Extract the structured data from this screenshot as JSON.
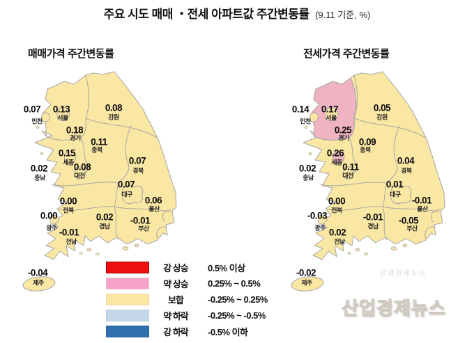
{
  "title": {
    "main": "주요 시도 매매 ・전세 아파트값 주간변동률",
    "suffix": "(9.11 기준, %)"
  },
  "maps": [
    {
      "title": "매매가격 주간변동률",
      "highlighted_regions": [],
      "regions": [
        {
          "name": "인천",
          "value": "0.07"
        },
        {
          "name": "서울",
          "value": "0.13"
        },
        {
          "name": "강원",
          "value": "0.08"
        },
        {
          "name": "경기",
          "value": "0.18"
        },
        {
          "name": "충북",
          "value": "0.11"
        },
        {
          "name": "세종",
          "value": "0.15"
        },
        {
          "name": "대전",
          "value": "0.08"
        },
        {
          "name": "충남",
          "value": "0.02"
        },
        {
          "name": "경북",
          "value": "0.07"
        },
        {
          "name": "대구",
          "value": "0.07"
        },
        {
          "name": "울산",
          "value": "0.06"
        },
        {
          "name": "전북",
          "value": "0.00"
        },
        {
          "name": "광주",
          "value": "0.00"
        },
        {
          "name": "경남",
          "value": "0.02"
        },
        {
          "name": "부산",
          "value": "-0.01"
        },
        {
          "name": "전남",
          "value": "-0.01"
        },
        {
          "name": "제주",
          "value": "-0.04"
        }
      ]
    },
    {
      "title": "전세가격 주간변동률",
      "highlighted_regions": [
        "경기",
        "세종"
      ],
      "regions": [
        {
          "name": "인천",
          "value": "0.14"
        },
        {
          "name": "서울",
          "value": "0.17"
        },
        {
          "name": "강원",
          "value": "0.05"
        },
        {
          "name": "경기",
          "value": "0.25"
        },
        {
          "name": "충북",
          "value": "0.09"
        },
        {
          "name": "세종",
          "value": "0.26"
        },
        {
          "name": "대전",
          "value": "0.11"
        },
        {
          "name": "충남",
          "value": "0.02"
        },
        {
          "name": "경북",
          "value": "0.04"
        },
        {
          "name": "대구",
          "value": "0.01"
        },
        {
          "name": "울산",
          "value": "-0.01"
        },
        {
          "name": "전북",
          "value": "0.00"
        },
        {
          "name": "광주",
          "value": "-0.03"
        },
        {
          "name": "경남",
          "value": "-0.01"
        },
        {
          "name": "부산",
          "value": "-0.05"
        },
        {
          "name": "전남",
          "value": "0.02"
        },
        {
          "name": "제주",
          "value": "-0.02"
        }
      ]
    }
  ],
  "legend": {
    "items": [
      {
        "label": "강 상승",
        "range": "0.5% 이상",
        "color": "#ee0f0f",
        "border": "#990000"
      },
      {
        "label": "약 상승",
        "range": "0.25% ~ 0.5%",
        "color": "#f8a2c8",
        "border": "#e3c3d2"
      },
      {
        "label": "보합",
        "range": "-0.25% ~ 0.25%",
        "color": "#fbe6a2",
        "border": "#e6d9b4"
      },
      {
        "label": "약 하락",
        "range": "-0.25% ~ -0.5%",
        "color": "#c5d8ea",
        "border": "#b9c9da"
      },
      {
        "label": "강 하락",
        "range": "-0.5% 이하",
        "color": "#2f6fad",
        "border": "#2a5f94"
      }
    ]
  },
  "map_colors": {
    "flat": "#fbe7a4",
    "weak_rise": "#f0b3c1",
    "stroke": "#a5a5a5",
    "sea": "#ffffff"
  },
  "watermark": "산업경제뉴스"
}
